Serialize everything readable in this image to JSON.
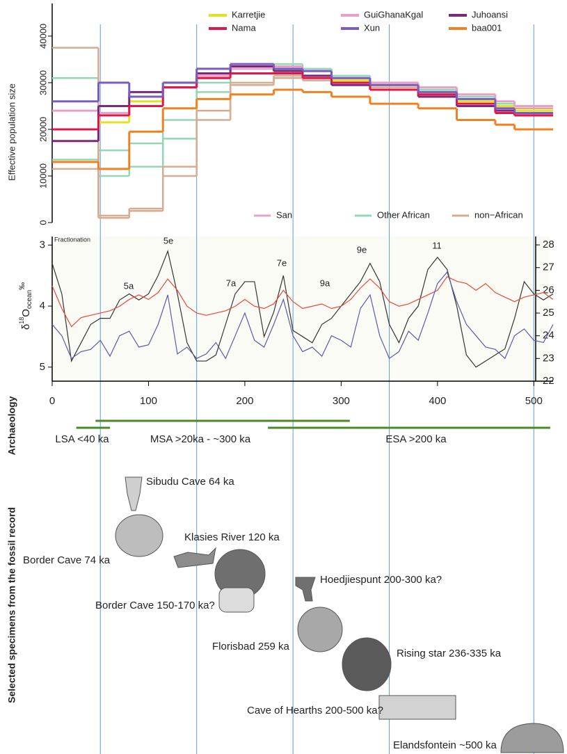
{
  "chart_data": [
    {
      "type": "step",
      "ylabel": "Effective population size",
      "x": [
        0,
        48,
        80,
        115,
        150,
        185,
        230,
        260,
        290,
        330,
        380,
        420,
        460,
        480
      ],
      "xlim": [
        0,
        520
      ],
      "ylim": [
        0,
        47000
      ],
      "yticks": [
        0,
        10000,
        20000,
        30000,
        40000
      ],
      "series": [
        {
          "name": "Karretjie",
          "color": "#e2e224",
          "values": [
            20000,
            21500,
            26000,
            30000,
            31500,
            32000,
            32500,
            31500,
            30500,
            29500,
            28000,
            26000,
            25000,
            24000
          ]
        },
        {
          "name": "GuiGhanaKgal",
          "color": "#e8a0c8",
          "values": [
            24000,
            23500,
            27000,
            30000,
            31500,
            33000,
            33500,
            32500,
            31000,
            30000,
            29000,
            27500,
            26000,
            25000
          ]
        },
        {
          "name": "Juhoansi",
          "color": "#7b2a7b",
          "values": [
            17500,
            25000,
            28000,
            29000,
            32000,
            33500,
            32500,
            31500,
            29500,
            28500,
            27000,
            25000,
            24000,
            23000
          ]
        },
        {
          "name": "Nama",
          "color": "#e0184a",
          "values": [
            20000,
            23000,
            25000,
            29000,
            31000,
            32000,
            32000,
            31000,
            30000,
            28500,
            27500,
            25500,
            23500,
            23000
          ]
        },
        {
          "name": "Xun",
          "color": "#7a5cc0",
          "values": [
            26000,
            30000,
            27000,
            30000,
            33000,
            34000,
            33000,
            32500,
            31000,
            29500,
            28000,
            26500,
            24500,
            23500
          ]
        },
        {
          "name": "baa001",
          "color": "#f08020",
          "values": [
            13000,
            11500,
            19500,
            24500,
            26500,
            27500,
            28500,
            28000,
            27000,
            25500,
            24500,
            22000,
            21000,
            20000
          ]
        }
      ],
      "group_legend": [
        {
          "name": "San",
          "color": "#e8a0c8"
        },
        {
          "name": "Other African",
          "color": "#93d8b4",
          "lines": [
            {
              "values": [
                31000,
                10000,
                12000,
                18000,
                28000,
                33000,
                34000,
                33000,
                31500,
                30000,
                28500,
                27000,
                25500,
                25000
              ]
            },
            {
              "values": [
                13500,
                15500,
                17000,
                22000,
                30000,
                33500,
                33000,
                32500,
                31000,
                29500,
                28500,
                26500,
                25000,
                24500
              ]
            }
          ]
        },
        {
          "name": "non−African",
          "color": "#d8aa90",
          "lines": [
            {
              "values": [
                37500,
                1500,
                2500,
                10000,
                22000,
                30000,
                31000,
                30500,
                30000,
                29000,
                28000,
                26500,
                25000,
                24500
              ]
            },
            {
              "values": [
                11500,
                1000,
                3000,
                12000,
                24000,
                29500,
                31500,
                31000,
                29500,
                28500,
                27500,
                26000,
                25000,
                24000
              ]
            }
          ]
        }
      ]
    },
    {
      "type": "line",
      "ylabel": {
        "symbol": "δ",
        "sup": "18",
        "base": "O",
        "sub": "ocean",
        "unit": "‰"
      },
      "x": [
        0,
        10,
        20,
        30,
        40,
        50,
        60,
        70,
        80,
        90,
        100,
        110,
        120,
        130,
        140,
        150,
        160,
        170,
        180,
        190,
        200,
        210,
        220,
        230,
        240,
        250,
        260,
        270,
        280,
        290,
        300,
        310,
        320,
        330,
        340,
        350,
        360,
        370,
        380,
        390,
        400,
        410,
        420,
        430,
        440,
        450,
        460,
        470,
        480,
        490,
        500,
        510,
        520
      ],
      "xlim": [
        0,
        520
      ],
      "xticks": [
        0,
        100,
        200,
        300,
        400,
        500
      ],
      "ylim": [
        5.23,
        2.86
      ],
      "yticks": [
        3,
        4,
        5
      ],
      "y2lim": [
        22,
        28.37
      ],
      "y2ticks": [
        22,
        23,
        24,
        25,
        26,
        27,
        28
      ],
      "vlines": [
        50,
        150,
        250,
        350,
        500
      ],
      "series": [
        {
          "color": "#333333",
          "values": [
            3.3,
            3.8,
            4.9,
            4.6,
            4.3,
            4.2,
            4.2,
            3.9,
            3.8,
            3.9,
            3.8,
            3.5,
            3.1,
            3.8,
            4.6,
            4.9,
            4.9,
            4.8,
            4.3,
            3.8,
            3.6,
            3.6,
            4.5,
            4.1,
            3.5,
            4.4,
            4.5,
            4.6,
            4.3,
            4.2,
            4.0,
            3.8,
            3.6,
            3.3,
            3.6,
            4.3,
            4.6,
            4.2,
            4.0,
            3.4,
            3.2,
            3.4,
            4.0,
            4.8,
            5.0,
            4.9,
            4.8,
            4.7,
            4.2,
            3.6,
            3.8,
            3.9,
            3.8
          ]
        },
        {
          "color": "#e8483c",
          "axis": "y2",
          "values": [
            26.2,
            25.2,
            24.4,
            24.8,
            24.9,
            25.0,
            25.1,
            25.3,
            25.6,
            25.8,
            25.6,
            25.9,
            26.5,
            26.0,
            25.3,
            25.0,
            24.9,
            25.0,
            25.1,
            25.3,
            25.6,
            25.3,
            25.2,
            25.4,
            26.0,
            25.5,
            25.2,
            25.3,
            25.4,
            25.2,
            25.3,
            25.6,
            26.1,
            26.5,
            26.1,
            25.5,
            25.3,
            25.4,
            25.6,
            25.8,
            26.0,
            26.6,
            26.4,
            26.3,
            26.0,
            26.3,
            25.9,
            25.7,
            25.5,
            25.7,
            25.8,
            25.9,
            25.6
          ]
        },
        {
          "color": "#5a5aa8",
          "axis": "y2",
          "values": [
            24.5,
            24.0,
            23.0,
            23.3,
            23.4,
            23.8,
            23.1,
            24.0,
            24.2,
            23.5,
            23.6,
            24.5,
            25.8,
            23.2,
            23.5,
            23.0,
            23.2,
            23.7,
            23.0,
            24.0,
            25.0,
            23.8,
            23.5,
            24.5,
            25.6,
            24.0,
            23.3,
            23.5,
            23.1,
            24.0,
            23.8,
            23.5,
            25.2,
            25.8,
            24.0,
            23.0,
            23.3,
            24.2,
            23.8,
            25.0,
            26.3,
            26.8,
            25.5,
            24.5,
            24.0,
            23.5,
            23.4,
            23.0,
            24.0,
            24.3,
            23.8,
            23.7,
            24.5
          ]
        }
      ],
      "annotations": [
        "Fractionation",
        "5a",
        "5e",
        "7a",
        "7e",
        "9a",
        "9e",
        "11"
      ]
    }
  ],
  "archaeology": {
    "label": "Archaeology",
    "color": "#4a8a2a",
    "periods": [
      {
        "label": "LSA <40 ka",
        "range": [
          25,
          60
        ]
      },
      {
        "label": "MSA >20ka - ~300 ka",
        "range": [
          45,
          309
        ]
      },
      {
        "label": "ESA >200 ka",
        "range": [
          224,
          517
        ]
      }
    ]
  },
  "fossils": {
    "label": "Selected specimens from the fossil record",
    "specimens": [
      "Sibudu Cave 64 ka",
      "Border Cave 74 ka",
      "Klasies River 120 ka",
      "Border Cave 150-170 ka?",
      "Hoedjiespunt 200-300 ka?",
      "Florisbad 259 ka",
      "Rising star 236-335 ka",
      "Cave of Hearths 200-500 ka?",
      "Elandsfontein ~500 ka"
    ]
  }
}
